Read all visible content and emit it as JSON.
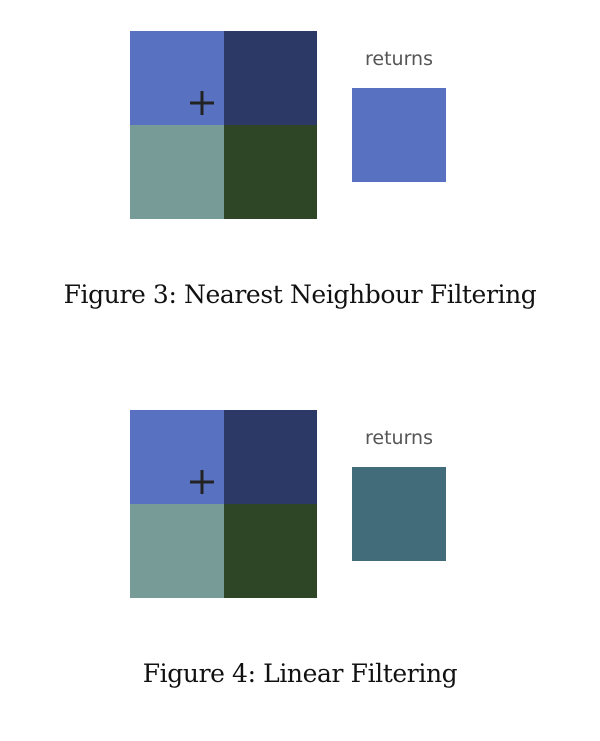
{
  "figures": [
    {
      "returns_label": "returns",
      "caption": "Figure 3: Nearest Neighbour Filtering",
      "cells": {
        "top_left": "#5871c1",
        "top_right": "#2c3966",
        "bottom_left": "#779b96",
        "bottom_right": "#2e4626"
      },
      "sample_marker": "plus-icon",
      "result_color": "#5871c1"
    },
    {
      "returns_label": "returns",
      "caption": "Figure 4: Linear Filtering",
      "cells": {
        "top_left": "#5871c1",
        "top_right": "#2c3966",
        "bottom_left": "#779b96",
        "bottom_right": "#2e4626"
      },
      "sample_marker": "plus-icon",
      "result_color": "#436c7a"
    }
  ]
}
